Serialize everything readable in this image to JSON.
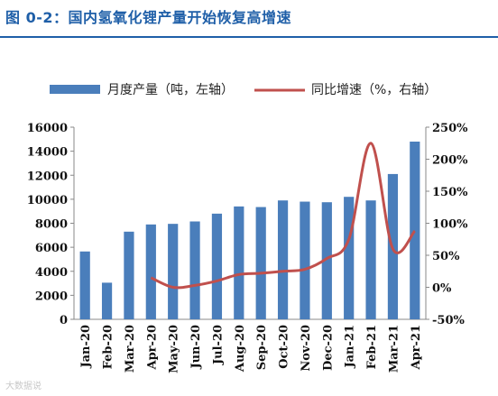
{
  "title": "图 0-2：国内氢氧化锂产量开始恢复高增速",
  "watermark": "大数据说",
  "chart_data": {
    "type": "bar+line",
    "categories": [
      "Jan-20",
      "Feb-20",
      "Mar-20",
      "Apr-20",
      "May-20",
      "Jun-20",
      "Jul-20",
      "Aug-20",
      "Sep-20",
      "Oct-20",
      "Nov-20",
      "Dec-20",
      "Jan-21",
      "Feb-21",
      "Mar-21",
      "Apr-21"
    ],
    "series": [
      {
        "name": "月度产量（吨，左轴）",
        "type": "bar",
        "axis": "left",
        "color": "#4a7ebb",
        "values": [
          5650,
          3050,
          7300,
          7900,
          7950,
          8150,
          8800,
          9400,
          9350,
          9900,
          9800,
          9750,
          10200,
          9900,
          12100,
          14800
        ]
      },
      {
        "name": "同比增速（%，右轴）",
        "type": "line",
        "axis": "right",
        "color": "#c0504d",
        "values": [
          null,
          null,
          null,
          15,
          0,
          3,
          10,
          20,
          22,
          25,
          28,
          45,
          75,
          225,
          60,
          88
        ]
      }
    ],
    "y_left": {
      "min": 0,
      "max": 16000,
      "ticks": [
        "0",
        "2000",
        "4000",
        "6000",
        "8000",
        "10000",
        "12000",
        "14000",
        "16000"
      ]
    },
    "y_right": {
      "min": -50,
      "max": 250,
      "ticks": [
        "-50%",
        "0%",
        "50%",
        "100%",
        "150%",
        "200%",
        "250%"
      ]
    },
    "legend_position": "top",
    "grid": false
  }
}
